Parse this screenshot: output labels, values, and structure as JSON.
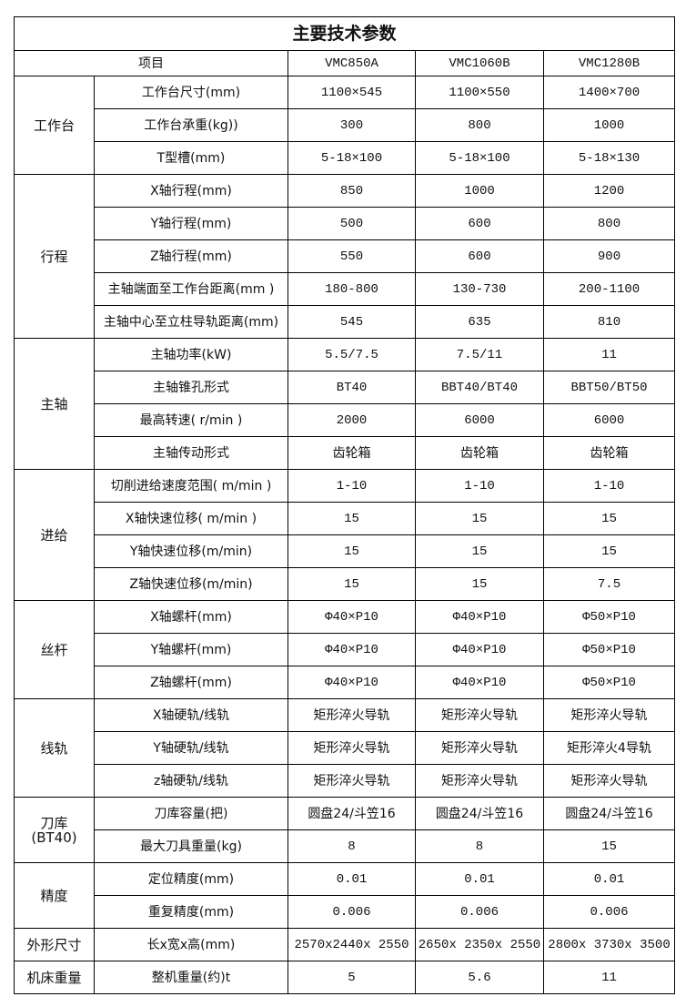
{
  "title": "主要技术参数",
  "header": {
    "item": "项目",
    "models": [
      "VMC850A",
      "VMC1060B",
      "VMC1280B"
    ]
  },
  "groups": [
    {
      "name": "工作台",
      "rows": [
        {
          "item": "工作台尺寸(mm)",
          "values": [
            "1100×545",
            "1100×550",
            "1400×700"
          ]
        },
        {
          "item": "工作台承重(kg))",
          "values": [
            "300",
            "800",
            "1000"
          ]
        },
        {
          "item": "T型槽(mm)",
          "values": [
            "5-18×100",
            "5-18×100",
            "5-18×130"
          ]
        }
      ]
    },
    {
      "name": "行程",
      "rows": [
        {
          "item": "X轴行程(mm)",
          "values": [
            "850",
            "1000",
            "1200"
          ]
        },
        {
          "item": "Y轴行程(mm)",
          "values": [
            "500",
            "600",
            "800"
          ]
        },
        {
          "item": "Z轴行程(mm)",
          "values": [
            "550",
            "600",
            "900"
          ]
        },
        {
          "item": "主轴端面至工作台距离(mm )",
          "values": [
            "180-800",
            "130-730",
            "200-1100"
          ]
        },
        {
          "item": "主轴中心至立柱导轨距离(mm)",
          "values": [
            "545",
            "635",
            "810"
          ]
        }
      ]
    },
    {
      "name": "主轴",
      "rows": [
        {
          "item": "主轴功率(kW)",
          "values": [
            "5.5/7.5",
            "7.5/11",
            "11"
          ]
        },
        {
          "item": "主轴锥孔形式",
          "values": [
            "BT40",
            "BBT40/BT40",
            "BBT50/BT50"
          ]
        },
        {
          "item": "最高转速( r/min )",
          "values": [
            "2000",
            "6000",
            "6000"
          ]
        },
        {
          "item": "主轴传动形式",
          "values": [
            "齿轮箱",
            "齿轮箱",
            "齿轮箱"
          ]
        }
      ]
    },
    {
      "name": "进给",
      "rows": [
        {
          "item": "切削进给速度范围( m/min )",
          "values": [
            "1-10",
            "1-10",
            "1-10"
          ]
        },
        {
          "item": "X轴快速位移( m/min )",
          "values": [
            "15",
            "15",
            "15"
          ]
        },
        {
          "item": "Y轴快速位移(m/min)",
          "values": [
            "15",
            "15",
            "15"
          ]
        },
        {
          "item": "Z轴快速位移(m/min)",
          "values": [
            "15",
            "15",
            "7.5"
          ]
        }
      ]
    },
    {
      "name": "丝杆",
      "rows": [
        {
          "item": "X轴螺杆(mm)",
          "values": [
            "Φ40×P10",
            "Φ40×P10",
            "Φ50×P10"
          ]
        },
        {
          "item": "Y轴螺杆(mm)",
          "values": [
            "Φ40×P10",
            "Φ40×P10",
            "Φ50×P10"
          ]
        },
        {
          "item": "Z轴螺杆(mm)",
          "values": [
            "Φ40×P10",
            "Φ40×P10",
            "Φ50×P10"
          ]
        }
      ]
    },
    {
      "name": "线轨",
      "rows": [
        {
          "item": "X轴硬轨/线轨",
          "values": [
            "矩形淬火导轨",
            "矩形淬火导轨",
            "矩形淬火导轨"
          ]
        },
        {
          "item": "Y轴硬轨/线轨",
          "values": [
            "矩形淬火导轨",
            "矩形淬火导轨",
            "矩形淬火4导轨"
          ]
        },
        {
          "item": "z轴硬轨/线轨",
          "values": [
            "矩形淬火导轨",
            "矩形淬火导轨",
            "矩形淬火导轨"
          ]
        }
      ]
    },
    {
      "name": "刀库\n(BT40)",
      "rows": [
        {
          "item": "刀库容量(把)",
          "values": [
            "圆盘24/斗笠16",
            "圆盘24/斗笠16",
            "圆盘24/斗笠16"
          ]
        },
        {
          "item": "最大刀具重量(kg)",
          "values": [
            "8",
            "8",
            "15"
          ]
        }
      ]
    },
    {
      "name": "精度",
      "rows": [
        {
          "item": "定位精度(mm)",
          "values": [
            "0.01",
            "0.01",
            "0.01"
          ]
        },
        {
          "item": "重复精度(mm)",
          "values": [
            "0.006",
            "0.006",
            "0.006"
          ]
        }
      ]
    },
    {
      "name": "外形尺寸",
      "rows": [
        {
          "item": "长x宽x高(mm)",
          "values": [
            "2570x2440x 2550",
            "2650x 2350x 2550",
            "2800x 3730x 3500"
          ]
        }
      ]
    },
    {
      "name": "机床重量",
      "rows": [
        {
          "item": "整机重量(约)t",
          "values": [
            "5",
            "5.6",
            "11"
          ]
        }
      ]
    }
  ]
}
